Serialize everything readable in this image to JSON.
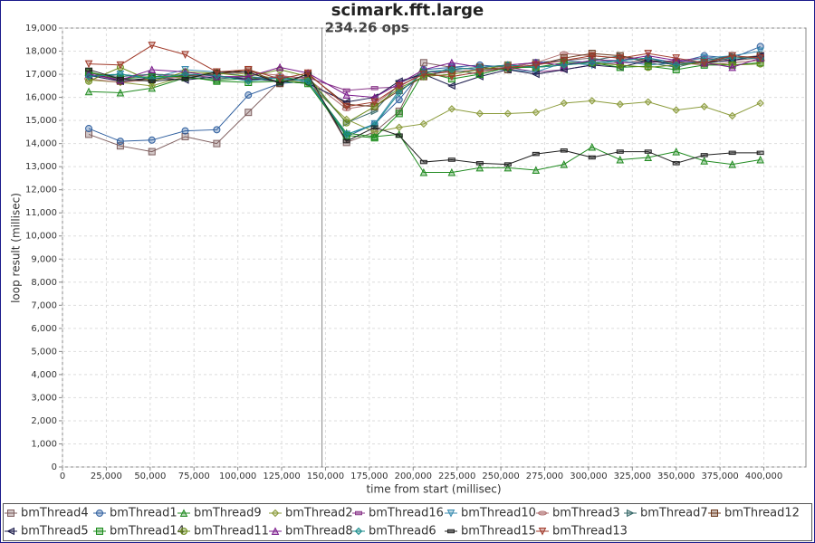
{
  "chart_data": {
    "type": "line",
    "title": "scimark.fft.large",
    "annotations": [
      {
        "x": 148000,
        "text": "234.26 ops"
      }
    ],
    "x_label": "time from start (millisec)",
    "y_label": "loop result (millisec)",
    "xlim": [
      0,
      424000
    ],
    "ylim": [
      0,
      19000
    ],
    "grid": true,
    "legend": "bottom",
    "xticks": [
      0,
      {
        "value": 25000,
        "label": "25,000"
      },
      {
        "value": 50000,
        "label": "50,000"
      },
      {
        "value": 75000,
        "label": "75,000"
      },
      {
        "value": 100000,
        "label": "100,000"
      },
      {
        "value": 125000,
        "label": "125,000"
      },
      {
        "value": 150000,
        "label": "150,000"
      },
      {
        "value": 175000,
        "label": "175,000"
      },
      {
        "value": 200000,
        "label": "200,000"
      },
      {
        "value": 225000,
        "label": "225,000"
      },
      {
        "value": 250000,
        "label": "250,000"
      },
      {
        "value": 275000,
        "label": "275,000"
      },
      {
        "value": 300000,
        "label": "300,000"
      },
      {
        "value": 325000,
        "label": "325,000"
      },
      {
        "value": 350000,
        "label": "350,000"
      },
      {
        "value": 375000,
        "label": "375,000"
      },
      {
        "value": 400000,
        "label": "400,000"
      }
    ],
    "yticks": [
      0,
      {
        "value": 1000,
        "label": "1,000"
      },
      {
        "value": 2000,
        "label": "2,000"
      },
      {
        "value": 3000,
        "label": "3,000"
      },
      {
        "value": 4000,
        "label": "4,000"
      },
      {
        "value": 5000,
        "label": "5,000"
      },
      {
        "value": 6000,
        "label": "6,000"
      },
      {
        "value": 7000,
        "label": "7,000"
      },
      {
        "value": 8000,
        "label": "8,000"
      },
      {
        "value": 9000,
        "label": "9,000"
      },
      {
        "value": 10000,
        "label": "10,000"
      },
      {
        "value": 11000,
        "label": "11,000"
      },
      {
        "value": 12000,
        "label": "12,000"
      },
      {
        "value": 13000,
        "label": "13,000"
      },
      {
        "value": 14000,
        "label": "14,000"
      },
      {
        "value": 15000,
        "label": "15,000"
      },
      {
        "value": 16000,
        "label": "16,000"
      },
      {
        "value": 17000,
        "label": "17,000"
      },
      {
        "value": 18000,
        "label": "18,000"
      },
      {
        "value": 19000,
        "label": "19,000"
      }
    ],
    "x": [
      15000,
      33000,
      51000,
      70000,
      88000,
      106000,
      124000,
      140000,
      162000,
      178000,
      192000,
      206000,
      222000,
      238000,
      254000,
      270000,
      286000,
      302000,
      318000,
      334000,
      350000,
      366000,
      382000,
      398000
    ],
    "series": [
      {
        "name": "bmThread4",
        "color": "#7f5f5f",
        "marker": "square",
        "values": [
          14400,
          13900,
          13650,
          14300,
          14000,
          15350,
          16700,
          16900,
          14050,
          14500,
          15400,
          17500,
          17300,
          17200,
          17400,
          17500,
          17600,
          17700,
          17500,
          17600,
          17400,
          17500,
          17600,
          17700
        ]
      },
      {
        "name": "bmThread1",
        "color": "#2f5f9f",
        "marker": "circle",
        "values": [
          14650,
          14100,
          14150,
          14550,
          14600,
          16100,
          16600,
          16700,
          14300,
          14850,
          15900,
          17200,
          17300,
          17400,
          17300,
          17500,
          17600,
          17500,
          17600,
          17700,
          17500,
          17800,
          17700,
          18200
        ]
      },
      {
        "name": "bmThread9",
        "color": "#228b22",
        "marker": "triangle-up",
        "values": [
          16250,
          16200,
          16400,
          16850,
          16750,
          16800,
          16900,
          16700,
          14450,
          14300,
          14400,
          12750,
          12750,
          12950,
          12950,
          12850,
          13100,
          13850,
          13300,
          13400,
          13650,
          13250,
          13100,
          13300
        ]
      },
      {
        "name": "bmThread2",
        "color": "#8b9b3b",
        "marker": "diamond",
        "values": [
          16750,
          16650,
          16500,
          16900,
          17100,
          17000,
          16800,
          16600,
          15050,
          14500,
          14700,
          14850,
          15500,
          15300,
          15300,
          15350,
          15750,
          15850,
          15700,
          15800,
          15450,
          15600,
          15200,
          15750
        ]
      },
      {
        "name": "bmThread16",
        "color": "#8b3a8b",
        "marker": "rect",
        "values": [
          17000,
          16800,
          17000,
          16850,
          16950,
          16750,
          16900,
          16850,
          16300,
          16400,
          16450,
          17100,
          17100,
          17200,
          17300,
          17100,
          17200,
          17400,
          17500,
          17500,
          17600,
          17700,
          17600,
          17800
        ]
      },
      {
        "name": "bmThread10",
        "color": "#3a8bb0",
        "marker": "triangle-down",
        "values": [
          16950,
          17000,
          16850,
          17200,
          17100,
          16900,
          16800,
          16700,
          14400,
          14850,
          16300,
          16900,
          17300,
          17200,
          17200,
          17100,
          17500,
          17400,
          17600,
          17400,
          17500,
          17700,
          17800,
          18000
        ]
      },
      {
        "name": "bmThread3",
        "color": "#b07070",
        "marker": "ellipse",
        "values": [
          16800,
          16650,
          16750,
          16900,
          17000,
          17100,
          16950,
          16800,
          15500,
          15700,
          16500,
          17000,
          17100,
          17200,
          17300,
          17500,
          17900,
          17800,
          17700,
          17600,
          17500,
          17400,
          17500,
          17600
        ]
      },
      {
        "name": "bmThread7",
        "color": "#3a6b6b",
        "marker": "triangle-right",
        "values": [
          17050,
          16900,
          17000,
          16950,
          16800,
          16900,
          16700,
          16800,
          14900,
          15400,
          16600,
          17100,
          17200,
          17000,
          17300,
          17300,
          17400,
          17600,
          17800,
          17500,
          17300,
          17600,
          17800,
          17700
        ]
      },
      {
        "name": "bmThread12",
        "color": "#6b3a1f",
        "marker": "square",
        "values": [
          17100,
          16700,
          16800,
          16950,
          17000,
          17200,
          16600,
          17000,
          15700,
          15600,
          16300,
          16900,
          17200,
          17300,
          17200,
          17400,
          17700,
          17900,
          17800,
          17600,
          17500,
          17500,
          17700,
          17800
        ]
      },
      {
        "name": "bmThread5",
        "color": "#1a1a4a",
        "marker": "triangle-left",
        "values": [
          16950,
          16700,
          16850,
          16750,
          16900,
          16800,
          16700,
          16600,
          15800,
          16000,
          16700,
          17000,
          16500,
          16900,
          17200,
          17000,
          17200,
          17400,
          17300,
          17600,
          17400,
          17500,
          17600,
          17800
        ]
      },
      {
        "name": "bmThread14",
        "color": "#1a8b1a",
        "marker": "square",
        "values": [
          17100,
          16800,
          16900,
          16900,
          16700,
          16650,
          16700,
          16600,
          14350,
          14250,
          15300,
          17100,
          16800,
          17000,
          17300,
          17300,
          17500,
          17500,
          17300,
          17350,
          17200,
          17400,
          17400,
          17500
        ]
      },
      {
        "name": "bmThread11",
        "color": "#6b8b1a",
        "marker": "circle",
        "values": [
          16700,
          17300,
          16700,
          17100,
          17050,
          16900,
          17200,
          16900,
          14900,
          15600,
          16400,
          16900,
          17000,
          17200,
          17400,
          17300,
          17400,
          17500,
          17400,
          17300,
          17400,
          17500,
          17400,
          17450
        ]
      },
      {
        "name": "bmThread8",
        "color": "#7a1a8b",
        "marker": "triangle-up",
        "values": [
          17000,
          16750,
          17200,
          17100,
          16900,
          16900,
          17300,
          17050,
          16100,
          16000,
          16600,
          17200,
          17500,
          17300,
          17400,
          17500,
          17400,
          17600,
          17600,
          17800,
          17600,
          17500,
          17300,
          17700
        ]
      },
      {
        "name": "bmThread6",
        "color": "#1a8b8b",
        "marker": "diamond",
        "values": [
          16900,
          17000,
          16800,
          17000,
          16950,
          16700,
          16850,
          16700,
          14400,
          14800,
          16200,
          17100,
          17200,
          17300,
          17400,
          17300,
          17400,
          17500,
          17600,
          17700,
          17400,
          17600,
          17700,
          17700
        ]
      },
      {
        "name": "bmThread15",
        "color": "#202020",
        "marker": "rect",
        "values": [
          17200,
          16800,
          16700,
          16800,
          17100,
          17100,
          16600,
          17000,
          14100,
          14700,
          14350,
          13200,
          13300,
          13150,
          13100,
          13550,
          13700,
          13400,
          13650,
          13650,
          13150,
          13500,
          13600,
          13600
        ]
      },
      {
        "name": "bmThread13",
        "color": "#a03a2a",
        "marker": "triangle-down",
        "values": [
          17450,
          17400,
          18250,
          17850,
          17100,
          17200,
          16800,
          17050,
          15600,
          15800,
          16500,
          17000,
          16900,
          17100,
          17300,
          17400,
          17600,
          17800,
          17700,
          17900,
          17700,
          17500,
          17800,
          17700
        ]
      }
    ]
  }
}
